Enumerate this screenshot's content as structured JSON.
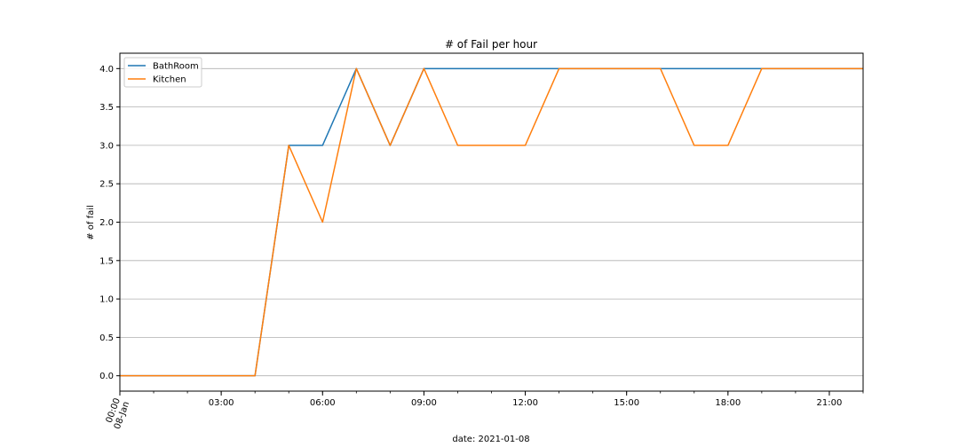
{
  "chart_data": {
    "type": "line",
    "title": "# of Fail per hour",
    "xlabel": "date: 2021-01-08",
    "ylabel": "# of fail",
    "x": [
      "00:00",
      "01:00",
      "02:00",
      "03:00",
      "04:00",
      "05:00",
      "06:00",
      "07:00",
      "08:00",
      "09:00",
      "10:00",
      "11:00",
      "12:00",
      "13:00",
      "14:00",
      "15:00",
      "16:00",
      "17:00",
      "18:00",
      "19:00",
      "20:00",
      "21:00",
      "22:00"
    ],
    "x_ticks": [
      {
        "hour": 0,
        "label": "00:00",
        "sublabel": "08-Jan"
      },
      {
        "hour": 3,
        "label": "03:00"
      },
      {
        "hour": 6,
        "label": "06:00"
      },
      {
        "hour": 9,
        "label": "09:00"
      },
      {
        "hour": 12,
        "label": "12:00"
      },
      {
        "hour": 15,
        "label": "15:00"
      },
      {
        "hour": 18,
        "label": "18:00"
      },
      {
        "hour": 21,
        "label": "21:00"
      }
    ],
    "xlim": [
      0,
      22
    ],
    "ylim": [
      -0.2,
      4.2
    ],
    "y_ticks": [
      "0.0",
      "0.5",
      "1.0",
      "1.5",
      "2.0",
      "2.5",
      "3.0",
      "3.5",
      "4.0"
    ],
    "grid": "y",
    "legend_position": "top-left",
    "series": [
      {
        "name": "BathRoom",
        "color": "#1f77b4",
        "values": [
          0,
          0,
          0,
          0,
          0,
          3,
          3,
          4,
          3,
          4,
          4,
          4,
          4,
          4,
          4,
          4,
          4,
          4,
          4,
          4,
          4,
          4,
          4
        ]
      },
      {
        "name": "Kitchen",
        "color": "#ff7f0e",
        "values": [
          0,
          0,
          0,
          0,
          0,
          3,
          2,
          4,
          3,
          4,
          3,
          3,
          3,
          4,
          4,
          4,
          4,
          3,
          3,
          4,
          4,
          4,
          4
        ]
      }
    ]
  }
}
